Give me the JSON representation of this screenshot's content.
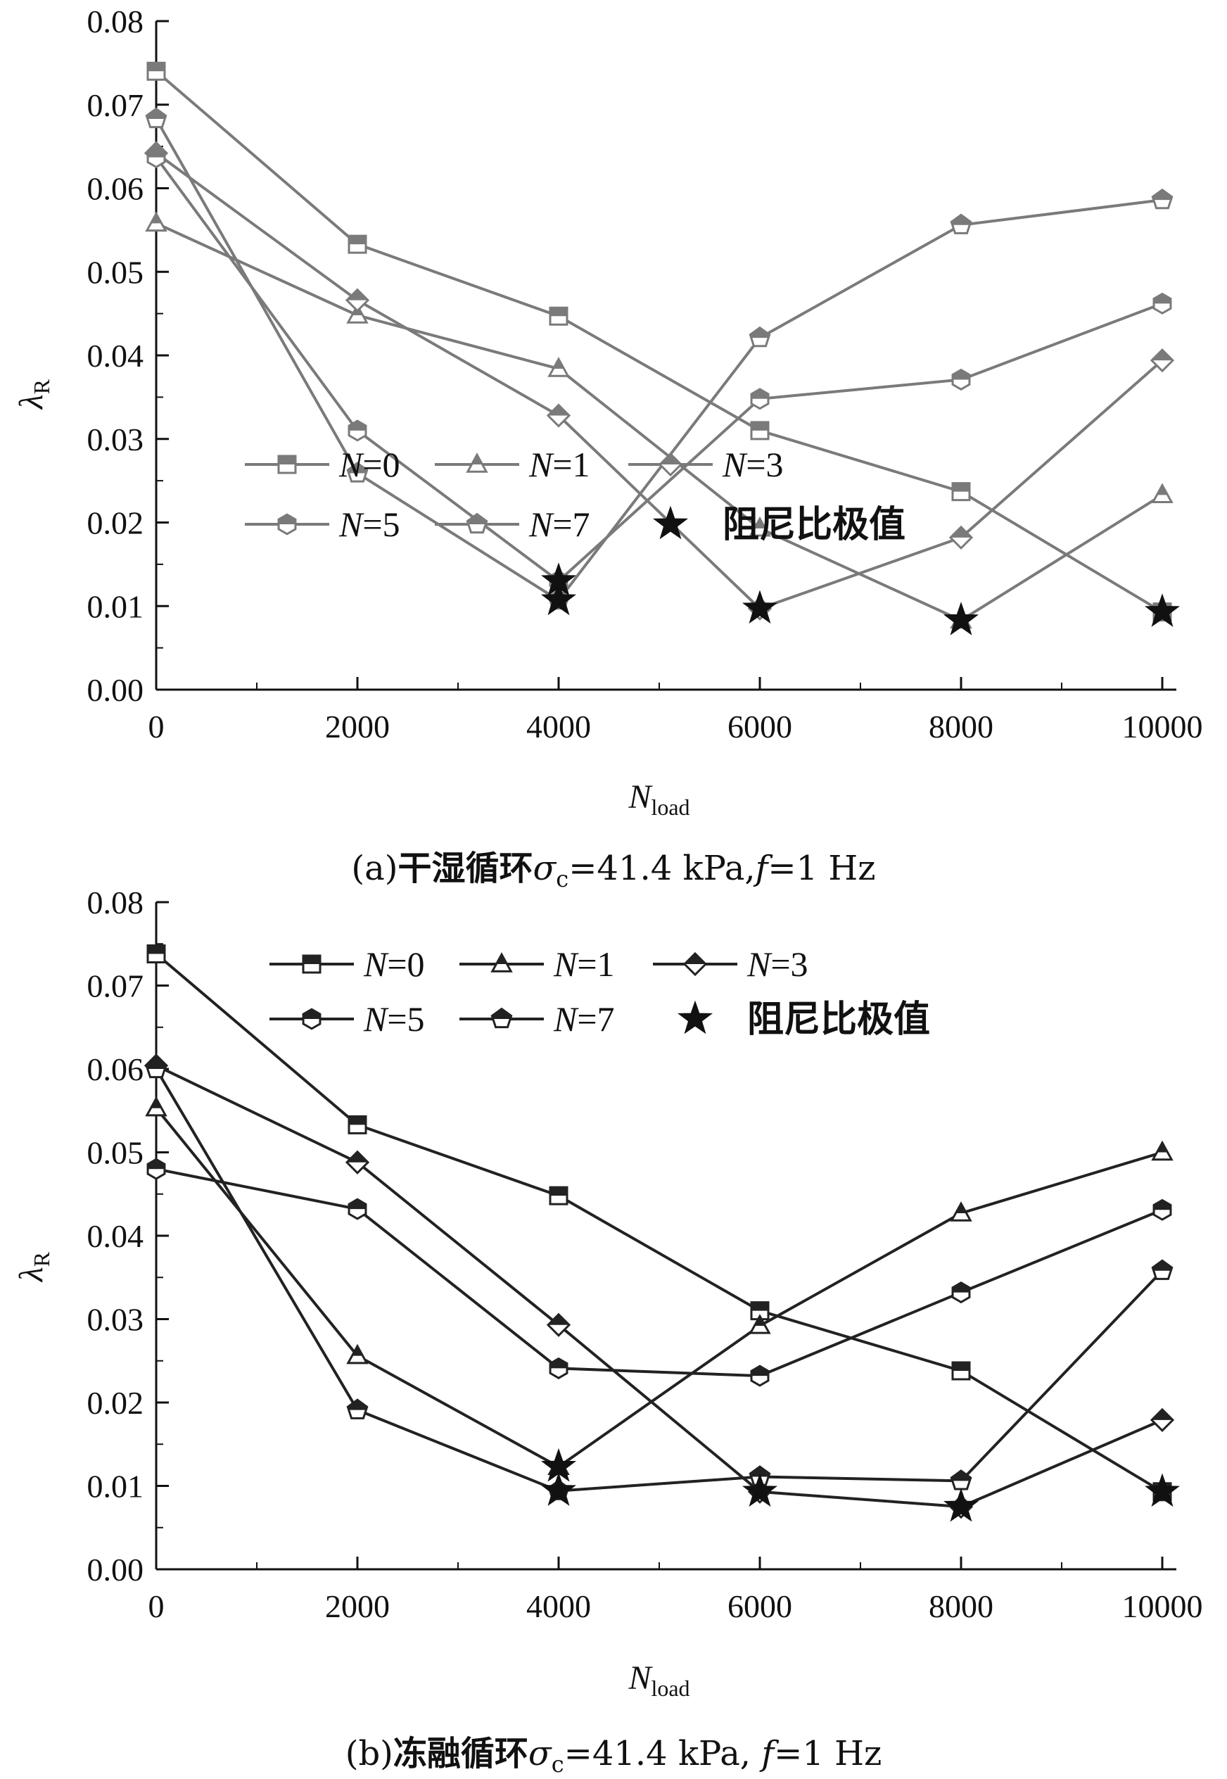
{
  "chart_data": [
    {
      "type": "line",
      "title": "",
      "caption": {
        "prefix": "(a)",
        "cn": "干湿循环",
        "sigma": "σ",
        "sigma_sub": "c",
        "rest": "=41.4 kPa,",
        "f": "f",
        "f_rest": "=1 Hz"
      },
      "xlabel": {
        "main": "N",
        "sub": "load"
      },
      "ylabel": {
        "main": "λ",
        "sub": "R"
      },
      "xlim": [
        0,
        10000
      ],
      "ylim": [
        0,
        0.08
      ],
      "xticks": [
        "0",
        "2000",
        "4000",
        "6000",
        "8000",
        "10000"
      ],
      "yticks": [
        "0.00",
        "0.01",
        "0.02",
        "0.03",
        "0.04",
        "0.05",
        "0.06",
        "0.07",
        "0.08"
      ],
      "line_color": "#7a7a7a",
      "legend_position": "top-right",
      "x": [
        0,
        2000,
        4000,
        6000,
        8000,
        10000
      ],
      "series": [
        {
          "name": "N=0",
          "marker": "square",
          "values": [
            0.074,
            0.0533,
            0.0447,
            0.031,
            0.0237,
            0.0093
          ]
        },
        {
          "name": "N=1",
          "marker": "triangle",
          "values": [
            0.0558,
            0.0448,
            0.0384,
            0.0193,
            0.0083,
            0.0233
          ]
        },
        {
          "name": "N=3",
          "marker": "diamond",
          "values": [
            0.0642,
            0.0466,
            0.0328,
            0.0097,
            0.0182,
            0.0394
          ]
        },
        {
          "name": "N=5",
          "marker": "hexagon",
          "values": [
            0.0637,
            0.031,
            0.013,
            0.0348,
            0.0371,
            0.0462
          ]
        },
        {
          "name": "N=7",
          "marker": "pentagon",
          "values": [
            0.0683,
            0.0259,
            0.0107,
            0.0421,
            0.0556,
            0.0586
          ]
        }
      ],
      "extrema": {
        "name": "阻尼比极值",
        "marker": "star",
        "x": [
          4000,
          4000,
          6000,
          8000,
          10000
        ],
        "y": [
          0.013,
          0.0107,
          0.0097,
          0.0083,
          0.0093
        ]
      },
      "legend_labels": [
        {
          "n": "N",
          "eq": "=0"
        },
        {
          "n": "N",
          "eq": "=1"
        },
        {
          "n": "N",
          "eq": "=3"
        },
        {
          "n": "N",
          "eq": "=5"
        },
        {
          "n": "N",
          "eq": "=7"
        },
        {
          "cn": "阻尼比极值"
        }
      ]
    },
    {
      "type": "line",
      "title": "",
      "caption": {
        "prefix": "(b)",
        "cn": "冻融循环",
        "sigma": "σ",
        "sigma_sub": "c",
        "rest": "=41.4 kPa, ",
        "f": "f",
        "f_rest": "=1 Hz"
      },
      "xlabel": {
        "main": "N",
        "sub": "load"
      },
      "ylabel": {
        "main": "λ",
        "sub": "R"
      },
      "xlim": [
        0,
        10000
      ],
      "ylim": [
        0,
        0.08
      ],
      "xticks": [
        "0",
        "2000",
        "4000",
        "6000",
        "8000",
        "10000"
      ],
      "yticks": [
        "0.00",
        "0.01",
        "0.02",
        "0.03",
        "0.04",
        "0.05",
        "0.06",
        "0.07",
        "0.08"
      ],
      "line_color": "#222222",
      "legend_position": "top-right",
      "x": [
        0,
        2000,
        4000,
        6000,
        8000,
        10000
      ],
      "series": [
        {
          "name": "N=0",
          "marker": "square",
          "values": [
            0.0738,
            0.0533,
            0.0448,
            0.031,
            0.0238,
            0.0093
          ]
        },
        {
          "name": "N=1",
          "marker": "triangle",
          "values": [
            0.0553,
            0.0256,
            0.0123,
            0.0292,
            0.0427,
            0.05
          ]
        },
        {
          "name": "N=3",
          "marker": "diamond",
          "values": [
            0.0604,
            0.0488,
            0.0293,
            0.0093,
            0.0075,
            0.0179
          ]
        },
        {
          "name": "N=5",
          "marker": "hexagon",
          "values": [
            0.048,
            0.0432,
            0.0241,
            0.0232,
            0.0332,
            0.0431
          ]
        },
        {
          "name": "N=7",
          "marker": "pentagon",
          "values": [
            0.06,
            0.0191,
            0.0094,
            0.0111,
            0.0106,
            0.0358
          ]
        }
      ],
      "extrema": {
        "name": "阻尼比极值",
        "marker": "star",
        "x": [
          4000,
          4000,
          6000,
          8000,
          10000
        ],
        "y": [
          0.0123,
          0.0094,
          0.0093,
          0.0075,
          0.0093
        ]
      },
      "legend_labels": [
        {
          "n": "N",
          "eq": "=0"
        },
        {
          "n": "N",
          "eq": "=1"
        },
        {
          "n": "N",
          "eq": "=3"
        },
        {
          "n": "N",
          "eq": "=5"
        },
        {
          "n": "N",
          "eq": "=7"
        },
        {
          "cn": "阻尼比极值"
        }
      ]
    }
  ]
}
